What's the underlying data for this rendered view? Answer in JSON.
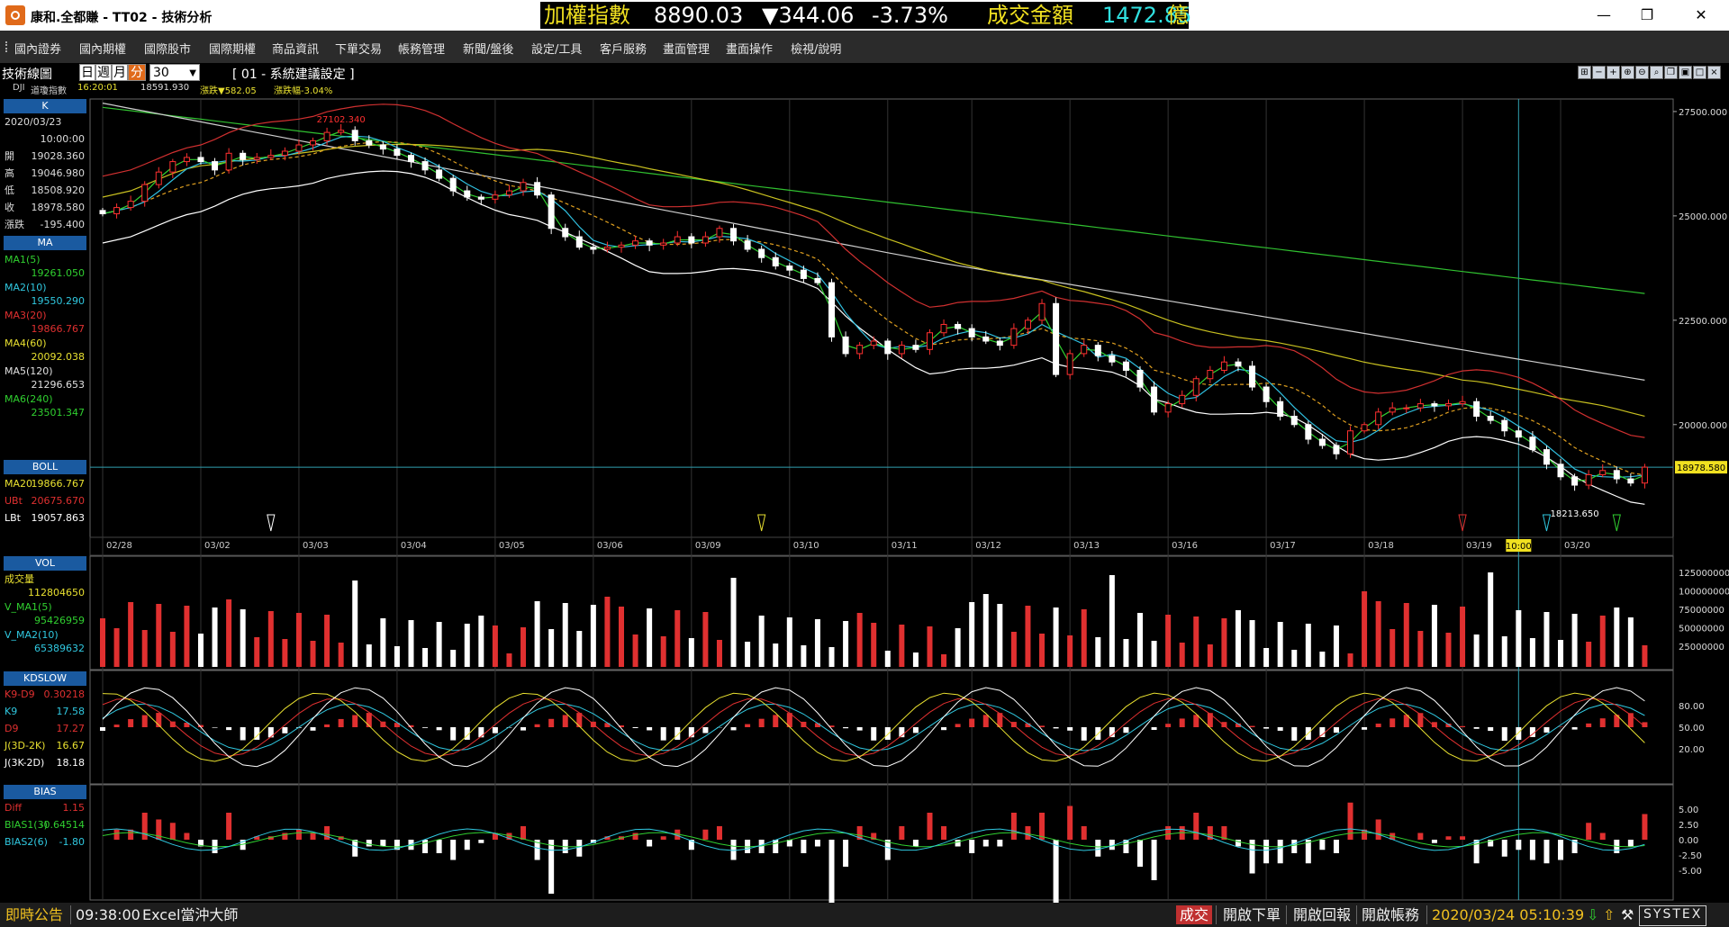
{
  "window": {
    "title": "康和.全都賺 - TT02 - 技術分析",
    "min": "—",
    "max": "❐",
    "close": "✕"
  },
  "ticker": {
    "label": "加權指數",
    "value": "8890.03",
    "change": "▼344.06",
    "change_pct": "-3.73%",
    "turnover_label": "成交金額",
    "turnover": "1472.85",
    "unit": "億",
    "colors": {
      "label": "#f0e020",
      "value": "#ffffff",
      "down": "#ffffff",
      "turnover_label": "#f0e020",
      "turnover": "#30e0e0"
    }
  },
  "menu": [
    "國內證券",
    "國內期權",
    "國際股市",
    "國際期權",
    "商品資訊",
    "下單交易",
    "帳務管理",
    "新聞/盤後",
    "設定/工具",
    "客戶服務",
    "畫面管理",
    "畫面操作",
    "檢視/說明"
  ],
  "toolbar": {
    "title": "技術線圖",
    "periods": [
      "日",
      "週",
      "月",
      "分"
    ],
    "active_period": "分",
    "minutes": "30",
    "settings": "[ 01 - 系統建議設定 ]",
    "icons": [
      "grid-icon",
      "minus-icon",
      "plus-icon",
      "zoom-in-icon",
      "zoom-out-icon",
      "search-icon",
      "copy-icon",
      "save-icon",
      "window-icon",
      "close-icon"
    ]
  },
  "subinfo": {
    "symbol": "DJI",
    "name": "道瓊指數",
    "time": "16:20:01",
    "price": "18591.930",
    "change_label": "漲跌▼582.05",
    "change_pct_label": "漲跌幅-3.04%"
  },
  "left_panel": {
    "k": {
      "head": "K",
      "date": "2020/03/23",
      "time": "10:00:00",
      "rows": [
        [
          "開",
          "19028.360"
        ],
        [
          "高",
          "19046.980"
        ],
        [
          "低",
          "18508.920"
        ],
        [
          "收",
          "18978.580"
        ],
        [
          "漲跌",
          "-195.400"
        ]
      ]
    },
    "ma": {
      "head": "MA",
      "rows": [
        {
          "label": "MA1(5)",
          "value": "19261.050",
          "color": "#30d030"
        },
        {
          "label": "MA2(10)",
          "value": "19550.290",
          "color": "#30c8e0"
        },
        {
          "label": "MA3(20)",
          "value": "19866.767",
          "color": "#e03030"
        },
        {
          "label": "MA4(60)",
          "value": "20092.038",
          "color": "#e8e030"
        },
        {
          "label": "MA5(120)",
          "value": "21296.653",
          "color": "#e0e0e0"
        },
        {
          "label": "MA6(240)",
          "value": "23501.347",
          "color": "#30d030"
        }
      ]
    },
    "boll": {
      "head": "BOLL",
      "rows": [
        {
          "label": "MA20",
          "value": "19866.767",
          "color": "#e8e030"
        },
        {
          "label": "UBt",
          "value": "20675.670",
          "color": "#e03030"
        },
        {
          "label": "LBt",
          "value": "19057.863",
          "color": "#ffffff"
        }
      ]
    },
    "vol": {
      "head": "VOL",
      "rows": [
        {
          "label": "成交量",
          "value": "112804650",
          "color": "#e8e030"
        },
        {
          "label": "V_MA1(5)",
          "value": "95426959",
          "color": "#30d030"
        },
        {
          "label": "V_MA2(10)",
          "value": "65389632",
          "color": "#30c8e0"
        }
      ]
    },
    "kd": {
      "head": "KDSLOW",
      "rows": [
        {
          "label": "K9-D9",
          "value": "0.30218",
          "color": "#e03030"
        },
        {
          "label": "K9",
          "value": "17.58",
          "color": "#30c8e0"
        },
        {
          "label": "D9",
          "value": "17.27",
          "color": "#e03030"
        },
        {
          "label": "J(3D-2K)",
          "value": "16.67",
          "color": "#e8e030"
        },
        {
          "label": "J(3K-2D)",
          "value": "18.18",
          "color": "#ffffff"
        }
      ]
    },
    "bias": {
      "head": "BIAS",
      "rows": [
        {
          "label": "Diff",
          "value": "1.15",
          "color": "#e03030"
        },
        {
          "label": "BIAS1(3)",
          "value": "-0.64514",
          "color": "#30d030"
        },
        {
          "label": "BIAS2(6)",
          "value": "-1.80",
          "color": "#30c8e0"
        }
      ]
    }
  },
  "chart_data": {
    "type": "candlestick",
    "x_dates": [
      "02/28",
      "03/02",
      "03/03",
      "03/04",
      "03/05",
      "03/06",
      "03/09",
      "03/10",
      "03/11",
      "03/12",
      "03/13",
      "03/16",
      "03/17",
      "03/18",
      "03/19",
      "03/20"
    ],
    "crosshair_time": "10:00",
    "price_axis": [
      "27500.000",
      "25000.000",
      "22500.000",
      "20000.000"
    ],
    "current_price_label": "18978.580",
    "high_label": "27102.340",
    "low_label": "18213.650",
    "ylim": [
      17300,
      27800
    ],
    "closes": [
      25050,
      25200,
      25350,
      25750,
      26050,
      26300,
      26400,
      26300,
      26100,
      26500,
      26350,
      26400,
      26450,
      26550,
      26700,
      26800,
      27000,
      27050,
      26800,
      26700,
      26600,
      26450,
      26300,
      26100,
      25900,
      25600,
      25450,
      25400,
      25500,
      25600,
      25800,
      25500,
      24700,
      24500,
      24250,
      24200,
      24250,
      24300,
      24400,
      24300,
      24350,
      24500,
      24350,
      24500,
      24700,
      24400,
      24200,
      24000,
      23800,
      23700,
      23500,
      23400,
      22100,
      21700,
      21900,
      22000,
      21700,
      21900,
      21800,
      22200,
      22400,
      22300,
      22100,
      22000,
      21900,
      22300,
      22500,
      22900,
      21200,
      21700,
      21900,
      21650,
      21500,
      21300,
      20900,
      20300,
      20500,
      20700,
      21100,
      21300,
      21500,
      21400,
      20900,
      20550,
      20200,
      20000,
      19650,
      19500,
      19300,
      19850,
      20000,
      20300,
      20400,
      20400,
      20500,
      20450,
      20500,
      20550,
      20200,
      20100,
      19850,
      19700,
      19400,
      19050,
      18750,
      18550,
      18800,
      18900,
      18700,
      18600,
      18980
    ],
    "volume": {
      "axis": [
        "125000000",
        "100000000",
        "75000000",
        "50000000",
        "25000000"
      ]
    },
    "kd": {
      "axis": [
        "80.00",
        "50.00",
        "20.00"
      ]
    },
    "bias": {
      "axis": [
        "5.00",
        "2.50",
        "0.00",
        "-2.50",
        "-5.00"
      ]
    }
  },
  "statusbar": {
    "announce": "即時公告",
    "time": "09:38:00",
    "news": "Excel當沖大師",
    "trade_tag": "成交",
    "open_order": "開啟下單",
    "open_return": "開啟回報",
    "open_account": "開啟帳務",
    "datetime": "2020/03/24 05:10:39",
    "brand": "SYSTEX"
  }
}
